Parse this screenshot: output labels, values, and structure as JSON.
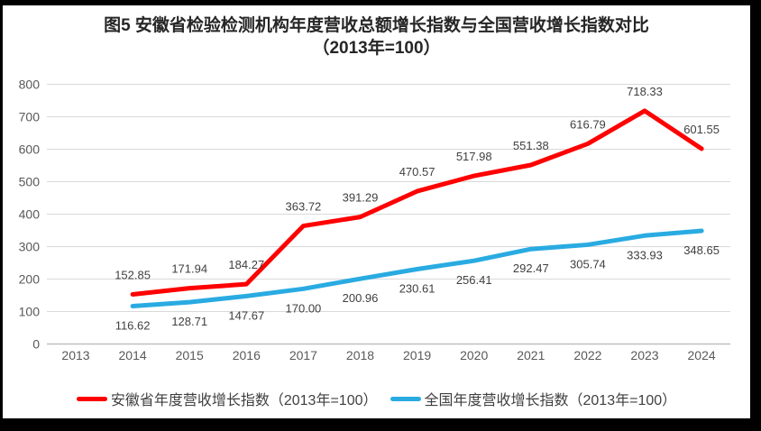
{
  "frame": {
    "background": "#FFFFFF",
    "border_color": "#000000"
  },
  "title": {
    "line1": "图5  安徽省检验检测机构年度营收总额增长指数与全国营收增长指数对比",
    "line2": "（2013年=100）"
  },
  "chart_data": {
    "type": "line",
    "title": "图5  安徽省检验检测机构年度营收总额增长指数与全国营收增长指数对比（2013年=100）",
    "categories": [
      "2013",
      "2014",
      "2015",
      "2016",
      "2017",
      "2018",
      "2019",
      "2020",
      "2021",
      "2022",
      "2023",
      "2024"
    ],
    "series": [
      {
        "key": "anhui",
        "name": "安徽省年度营收增长指数（2013年=100）",
        "color": "#FE0000",
        "label_position": "above",
        "values": [
          null,
          152.85,
          171.94,
          184.27,
          363.72,
          391.29,
          470.57,
          517.98,
          551.38,
          616.79,
          718.33,
          601.55
        ]
      },
      {
        "key": "national",
        "name": "全国年度营收增长指数（2013年=100）",
        "color": "#29ABE2",
        "label_position": "below",
        "values": [
          null,
          116.62,
          128.71,
          147.67,
          170.0,
          200.96,
          230.61,
          256.41,
          292.47,
          305.74,
          333.93,
          348.65
        ]
      }
    ],
    "ylim": [
      0,
      800
    ],
    "ytick_step": 100,
    "yticks": [
      0,
      100,
      200,
      300,
      400,
      500,
      600,
      700,
      800
    ],
    "grid": true,
    "legend_position": "bottom",
    "colors": {
      "gridline": "#D9D9D9",
      "axis_line": "#BFBFBF",
      "tick_label": "#595959",
      "data_label": "#404040"
    }
  }
}
